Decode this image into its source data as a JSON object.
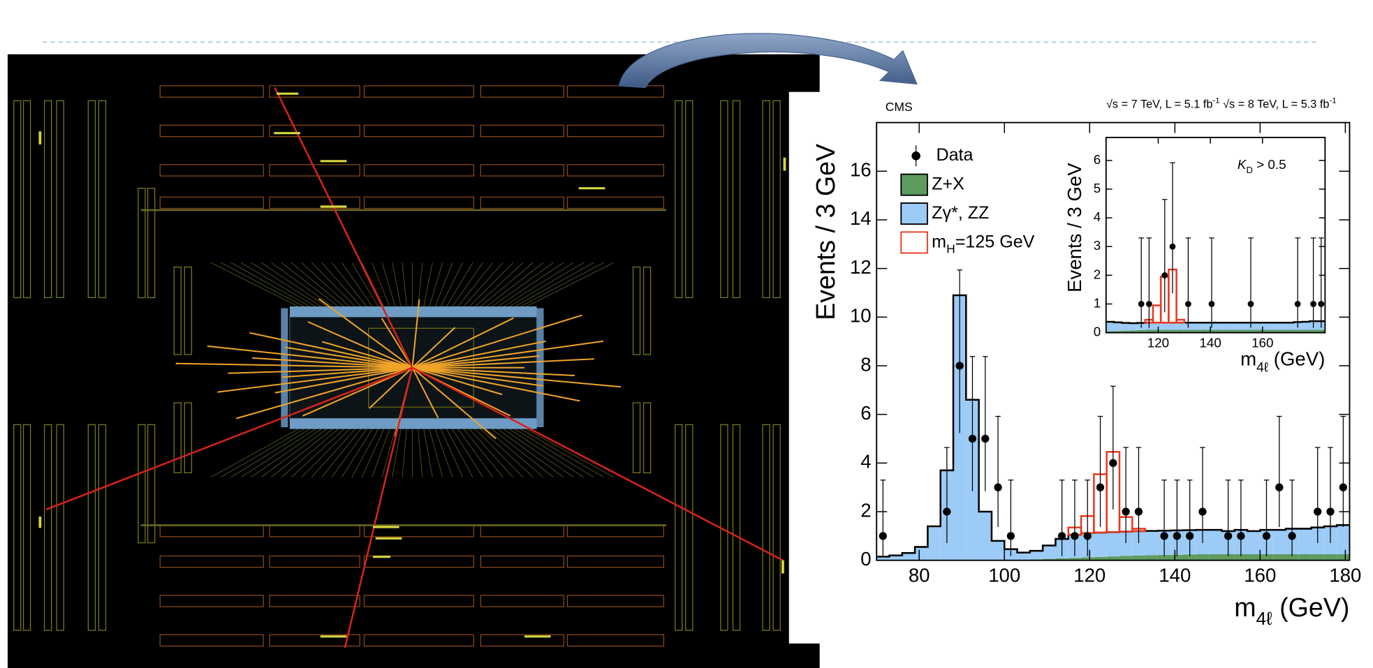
{
  "chart_data": [
    {
      "type": "histogram",
      "label": "CMS",
      "energy": [
        {
          "t": "√s = 7 TeV, L = 5.1 fb"
        },
        {
          "t": "-1",
          "sup": true
        },
        {
          "t": "  √s = 8 TeV, L = 5.3 fb"
        },
        {
          "t": "-1",
          "sup": true
        }
      ],
      "y_label": [
        {
          "t": "Events / 3 GeV"
        }
      ],
      "x_label": [
        {
          "t": "m"
        },
        {
          "t": "4ℓ",
          "sub": true
        },
        {
          "t": " (GeV)"
        }
      ],
      "bins": [
        70,
        73,
        76,
        79,
        82,
        85,
        88,
        91,
        94,
        97,
        100,
        103,
        106,
        109,
        112,
        115,
        118,
        121,
        124,
        127,
        130,
        133,
        136,
        139,
        142,
        145,
        148,
        151,
        154,
        157,
        160,
        163,
        166,
        169,
        172,
        175,
        178,
        181
      ],
      "xlim": [
        70,
        181
      ],
      "xticks": [
        80,
        100,
        120,
        140,
        160,
        180
      ],
      "ylim": [
        0,
        18
      ],
      "yticks": [
        0,
        2,
        4,
        6,
        8,
        10,
        12,
        14,
        16
      ],
      "series": [
        {
          "name": [
            {
              "t": "Z+X"
            }
          ],
          "color": "#5e9b5f",
          "values": [
            0,
            0,
            0,
            0,
            0,
            0,
            0,
            0,
            0,
            0,
            0.01,
            0.02,
            0.04,
            0.06,
            0.08,
            0.1,
            0.12,
            0.14,
            0.16,
            0.18,
            0.2,
            0.21,
            0.22,
            0.23,
            0.24,
            0.25,
            0.25,
            0.25,
            0.25,
            0.25,
            0.25,
            0.25,
            0.25,
            0.25,
            0.25,
            0.25,
            0.25
          ]
        },
        {
          "name": [
            {
              "t": "Zγ*, ZZ"
            }
          ],
          "color": "#9ccbf7",
          "values": [
            0.15,
            0.2,
            0.3,
            0.55,
            1.4,
            3.7,
            10.9,
            6.6,
            2.0,
            0.8,
            0.45,
            0.3,
            0.35,
            0.55,
            0.8,
            0.95,
            1.0,
            1.0,
            1.0,
            1.0,
            1.0,
            1.0,
            1.0,
            1.0,
            1.0,
            1.0,
            1.0,
            0.95,
            1.0,
            0.95,
            1.0,
            1.0,
            1.05,
            1.05,
            1.1,
            1.15,
            1.2
          ]
        },
        {
          "name": [
            {
              "t": "m"
            },
            {
              "t": "H",
              "sub": true
            },
            {
              "t": "=125 GeV"
            }
          ],
          "color": "#e8391d",
          "fill": false,
          "values": [
            0,
            0,
            0,
            0,
            0,
            0,
            0,
            0,
            0,
            0,
            0,
            0,
            0,
            0,
            0,
            0.3,
            0.7,
            2.4,
            3.3,
            0.6,
            0.1,
            0,
            0,
            0,
            0,
            0,
            0,
            0,
            0,
            0,
            0,
            0,
            0,
            0,
            0,
            0,
            0
          ]
        }
      ],
      "points": {
        "name": [
          {
            "t": "Data"
          }
        ],
        "color": "#000000",
        "x": [
          71.5,
          86.5,
          89.5,
          92.5,
          95.5,
          98.5,
          101.5,
          113.5,
          116.5,
          119.5,
          122.5,
          125.5,
          128.5,
          131.5,
          137.5,
          140.5,
          143.5,
          146.5,
          152.5,
          155.5,
          161.5,
          164.5,
          167.5,
          173.5,
          176.5,
          179.5
        ],
        "values": [
          1,
          2,
          8,
          5,
          5,
          3,
          1,
          1,
          1,
          1,
          3,
          4,
          2,
          2,
          1,
          1,
          1,
          2,
          1,
          1,
          1,
          3,
          1,
          2,
          2,
          3
        ],
        "err_low": [
          0.83,
          1.29,
          2.77,
          2.16,
          2.16,
          1.63,
          0.83,
          0.83,
          0.83,
          0.83,
          1.63,
          1.91,
          1.29,
          1.29,
          0.83,
          0.83,
          0.83,
          1.29,
          0.83,
          0.83,
          0.83,
          1.63,
          0.83,
          1.29,
          1.29,
          1.63
        ],
        "err_high": [
          2.3,
          2.64,
          3.94,
          3.38,
          3.38,
          2.92,
          2.3,
          2.3,
          2.3,
          2.3,
          2.92,
          3.16,
          2.64,
          2.64,
          2.3,
          2.3,
          2.3,
          2.64,
          2.3,
          2.3,
          2.3,
          2.92,
          2.3,
          2.64,
          2.64,
          2.92
        ]
      },
      "legend": "upper left"
    },
    {
      "type": "histogram",
      "annotation": [
        {
          "t": "K",
          "i": true
        },
        {
          "t": "D",
          "sub": true
        },
        {
          "t": " > 0.5"
        }
      ],
      "y_label": [
        {
          "t": "Events / 3 GeV"
        }
      ],
      "x_label": [
        {
          "t": "m"
        },
        {
          "t": "4ℓ",
          "sub": true
        },
        {
          "t": " (GeV)"
        }
      ],
      "bins": [
        100,
        103,
        106,
        109,
        112,
        115,
        118,
        121,
        124,
        127,
        130,
        133,
        136,
        139,
        142,
        145,
        148,
        151,
        154,
        157,
        160,
        163,
        166,
        169,
        172,
        175,
        178,
        181,
        184
      ],
      "xlim": [
        100,
        184
      ],
      "xticks": [
        120,
        140,
        160
      ],
      "ylim": [
        0,
        6.8
      ],
      "yticks": [
        0,
        1,
        2,
        3,
        4,
        5,
        6
      ],
      "series": [
        {
          "color": "#5e9b5f",
          "values": [
            0.05,
            0.06,
            0.07,
            0.08,
            0.09,
            0.1,
            0.1,
            0.1,
            0.1,
            0.1,
            0.1,
            0.1,
            0.1,
            0.1,
            0.1,
            0.1,
            0.1,
            0.1,
            0.1,
            0.1,
            0.1,
            0.1,
            0.1,
            0.1,
            0.1,
            0.1,
            0.1,
            0.1
          ]
        },
        {
          "color": "#9ccbf7",
          "values": [
            0.33,
            0.3,
            0.27,
            0.25,
            0.25,
            0.25,
            0.25,
            0.25,
            0.25,
            0.25,
            0.25,
            0.25,
            0.25,
            0.25,
            0.25,
            0.25,
            0.25,
            0.25,
            0.25,
            0.25,
            0.25,
            0.25,
            0.25,
            0.25,
            0.27,
            0.28,
            0.3,
            0.3
          ]
        },
        {
          "color": "#e8391d",
          "fill": false,
          "values": [
            0,
            0,
            0,
            0,
            0,
            0.1,
            0.6,
            1.6,
            1.85,
            0.1,
            0,
            0,
            0,
            0,
            0,
            0,
            0,
            0,
            0,
            0,
            0,
            0,
            0,
            0,
            0,
            0,
            0,
            0
          ]
        }
      ],
      "points": {
        "color": "#000000",
        "x": [
          113.5,
          116.5,
          122.5,
          125.5,
          131.5,
          140.5,
          155.5,
          173.5,
          179.5,
          182.5
        ],
        "values": [
          1,
          1,
          2,
          3,
          1,
          1,
          1,
          1,
          1,
          1
        ],
        "err_low": [
          0.83,
          0.83,
          1.29,
          1.63,
          0.83,
          0.83,
          0.83,
          0.83,
          0.83,
          0.83
        ],
        "err_high": [
          2.3,
          2.3,
          2.64,
          2.92,
          2.3,
          2.3,
          2.3,
          2.3,
          2.3,
          2.3
        ]
      }
    }
  ]
}
